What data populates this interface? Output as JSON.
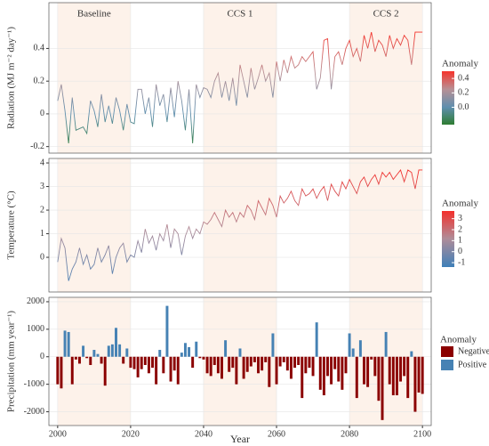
{
  "chart_data": [
    {
      "type": "line",
      "y_label": "Radiation (MJ m⁻² day⁻¹)",
      "periods": [
        {
          "label": "Baseline",
          "start": 2000,
          "end": 2020
        },
        {
          "label": "CCS 1",
          "start": 2040,
          "end": 2060
        },
        {
          "label": "CCS 2",
          "start": 2080,
          "end": 2100
        }
      ],
      "x": [
        2000,
        2001,
        2002,
        2003,
        2004,
        2005,
        2006,
        2007,
        2008,
        2009,
        2010,
        2011,
        2012,
        2013,
        2014,
        2015,
        2016,
        2017,
        2018,
        2019,
        2020,
        2021,
        2022,
        2023,
        2024,
        2025,
        2026,
        2027,
        2028,
        2029,
        2030,
        2031,
        2032,
        2033,
        2034,
        2035,
        2036,
        2037,
        2038,
        2039,
        2040,
        2041,
        2042,
        2043,
        2044,
        2045,
        2046,
        2047,
        2048,
        2049,
        2050,
        2051,
        2052,
        2053,
        2054,
        2055,
        2056,
        2057,
        2058,
        2059,
        2060,
        2061,
        2062,
        2063,
        2064,
        2065,
        2066,
        2067,
        2068,
        2069,
        2070,
        2071,
        2072,
        2073,
        2074,
        2075,
        2076,
        2077,
        2078,
        2079,
        2080,
        2081,
        2082,
        2083,
        2084,
        2085,
        2086,
        2087,
        2088,
        2089,
        2090,
        2091,
        2092,
        2093,
        2094,
        2095,
        2096,
        2097,
        2098,
        2099,
        2100
      ],
      "values": [
        0.08,
        0.18,
        0.02,
        -0.18,
        0.1,
        -0.1,
        -0.09,
        -0.08,
        -0.12,
        0.08,
        0.02,
        -0.08,
        0.12,
        -0.05,
        0.05,
        -0.06,
        0.1,
        0.02,
        -0.1,
        0.06,
        -0.05,
        -0.06,
        0.15,
        0.15,
        0.0,
        0.1,
        -0.08,
        0.18,
        0.05,
        0.12,
        -0.05,
        0.16,
        -0.02,
        0.2,
        0.08,
        -0.1,
        0.15,
        -0.18,
        0.18,
        0.1,
        0.16,
        0.15,
        0.1,
        0.2,
        0.25,
        0.1,
        0.2,
        0.08,
        0.22,
        0.05,
        0.3,
        0.2,
        0.1,
        0.28,
        0.15,
        0.22,
        0.3,
        0.2,
        0.25,
        0.1,
        0.32,
        0.2,
        0.33,
        0.25,
        0.35,
        0.28,
        0.3,
        0.35,
        0.32,
        0.35,
        0.38,
        0.15,
        0.22,
        0.45,
        0.46,
        0.15,
        0.35,
        0.38,
        0.3,
        0.4,
        0.45,
        0.35,
        0.4,
        0.32,
        0.48,
        0.4,
        0.5,
        0.38,
        0.45,
        0.42,
        0.35,
        0.48,
        0.4,
        0.46,
        0.42,
        0.48,
        0.45,
        0.3,
        0.5,
        0.5,
        0.5
      ],
      "xlim": [
        1997.6,
        2102.4
      ],
      "xticks": [
        2000,
        2020,
        2040,
        2060,
        2080,
        2100
      ],
      "ylim": [
        -0.24,
        0.68
      ],
      "yticks": [
        -0.2,
        0,
        0.2,
        0.4
      ],
      "legend_title": "Anomaly",
      "colorscale": [
        {
          "value": -0.24,
          "color": "#2e7d32"
        },
        {
          "value": 0,
          "color": "#5f8fae"
        },
        {
          "value": 0.25,
          "color": "#b89095"
        },
        {
          "value": 0.5,
          "color": "#f5332b"
        }
      ],
      "colorbar_ticks": [
        0.4,
        0.2,
        {
          "value": 0,
          "label": "0.0"
        }
      ]
    },
    {
      "type": "line",
      "y_label": "Temperature (°C)",
      "x": [
        2000,
        2001,
        2002,
        2003,
        2004,
        2005,
        2006,
        2007,
        2008,
        2009,
        2010,
        2011,
        2012,
        2013,
        2014,
        2015,
        2016,
        2017,
        2018,
        2019,
        2020,
        2021,
        2022,
        2023,
        2024,
        2025,
        2026,
        2027,
        2028,
        2029,
        2030,
        2031,
        2032,
        2033,
        2034,
        2035,
        2036,
        2037,
        2038,
        2039,
        2040,
        2041,
        2042,
        2043,
        2044,
        2045,
        2046,
        2047,
        2048,
        2049,
        2050,
        2051,
        2052,
        2053,
        2054,
        2055,
        2056,
        2057,
        2058,
        2059,
        2060,
        2061,
        2062,
        2063,
        2064,
        2065,
        2066,
        2067,
        2068,
        2069,
        2070,
        2071,
        2072,
        2073,
        2074,
        2075,
        2076,
        2077,
        2078,
        2079,
        2080,
        2081,
        2082,
        2083,
        2084,
        2085,
        2086,
        2087,
        2088,
        2089,
        2090,
        2091,
        2092,
        2093,
        2094,
        2095,
        2096,
        2097,
        2098,
        2099,
        2100
      ],
      "values": [
        -0.2,
        0.8,
        0.4,
        -1.0,
        -0.5,
        -0.2,
        0.4,
        -0.3,
        0.1,
        -0.5,
        -0.3,
        0.4,
        -0.2,
        0.1,
        0.5,
        -0.7,
        0.0,
        0.4,
        0.6,
        -0.2,
        0.1,
        0.0,
        0.7,
        0.2,
        1.2,
        0.6,
        0.9,
        0.3,
        1.0,
        0.7,
        1.4,
        0.4,
        1.2,
        1.0,
        0.1,
        0.9,
        1.3,
        0.8,
        1.2,
        1.0,
        1.5,
        1.4,
        1.6,
        1.9,
        1.6,
        1.3,
        2.0,
        1.7,
        1.9,
        1.5,
        1.9,
        1.7,
        2.2,
        2.0,
        1.6,
        2.4,
        2.1,
        1.8,
        2.5,
        2.2,
        1.7,
        2.6,
        2.3,
        2.5,
        2.8,
        2.4,
        2.2,
        2.9,
        2.6,
        2.7,
        2.9,
        2.5,
        2.8,
        3.0,
        2.4,
        3.1,
        2.8,
        2.6,
        3.2,
        2.9,
        3.3,
        3.0,
        2.7,
        3.2,
        3.4,
        3.0,
        3.3,
        3.5,
        3.1,
        3.6,
        3.4,
        3.6,
        3.3,
        3.5,
        3.7,
        3.2,
        3.7,
        3.6,
        2.9,
        3.7,
        3.7
      ],
      "xlim": [
        1997.6,
        2102.4
      ],
      "xticks": [
        2000,
        2020,
        2040,
        2060,
        2080,
        2100
      ],
      "ylim": [
        -1.47,
        4.19
      ],
      "yticks": [
        0,
        1,
        2,
        3,
        4
      ],
      "legend_title": "Anomaly",
      "colorscale": [
        {
          "value": -1.4,
          "color": "#3f80b8"
        },
        {
          "value": 1.2,
          "color": "#b08c98"
        },
        {
          "value": 3.7,
          "color": "#f3302c"
        }
      ],
      "colorbar_ticks": [
        3,
        2,
        1,
        0,
        -1
      ]
    },
    {
      "type": "bar",
      "y_label": "Precipitation (mm year⁻¹)",
      "x_label": "Year",
      "x": [
        2000,
        2001,
        2002,
        2003,
        2004,
        2005,
        2006,
        2007,
        2008,
        2009,
        2010,
        2011,
        2012,
        2013,
        2014,
        2015,
        2016,
        2017,
        2018,
        2019,
        2020,
        2021,
        2022,
        2023,
        2024,
        2025,
        2026,
        2027,
        2028,
        2029,
        2030,
        2031,
        2032,
        2033,
        2034,
        2035,
        2036,
        2037,
        2038,
        2039,
        2040,
        2041,
        2042,
        2043,
        2044,
        2045,
        2046,
        2047,
        2048,
        2049,
        2050,
        2051,
        2052,
        2053,
        2054,
        2055,
        2056,
        2057,
        2058,
        2059,
        2060,
        2061,
        2062,
        2063,
        2064,
        2065,
        2066,
        2067,
        2068,
        2069,
        2070,
        2071,
        2072,
        2073,
        2074,
        2075,
        2076,
        2077,
        2078,
        2079,
        2080,
        2081,
        2082,
        2083,
        2084,
        2085,
        2086,
        2087,
        2088,
        2089,
        2090,
        2091,
        2092,
        2093,
        2094,
        2095,
        2096,
        2097,
        2098,
        2099,
        2100
      ],
      "values": [
        -1000,
        -1150,
        950,
        900,
        -1000,
        -100,
        -250,
        400,
        -50,
        -300,
        250,
        100,
        -250,
        -1050,
        400,
        450,
        1050,
        450,
        -250,
        300,
        -400,
        -450,
        -750,
        -450,
        -300,
        -600,
        -400,
        -1000,
        250,
        -600,
        1850,
        -900,
        -500,
        -1000,
        150,
        500,
        350,
        -400,
        550,
        -50,
        -100,
        -600,
        -700,
        -300,
        -600,
        -800,
        600,
        -550,
        -400,
        -1000,
        300,
        -800,
        -550,
        -350,
        -200,
        -600,
        -500,
        -200,
        -1100,
        850,
        -1000,
        -350,
        -200,
        -500,
        -800,
        -400,
        -300,
        -1500,
        -600,
        -400,
        -700,
        1250,
        -1200,
        -1400,
        -700,
        -1000,
        -450,
        -900,
        -1200,
        -600,
        850,
        300,
        -1500,
        600,
        -1000,
        -1100,
        -100,
        -700,
        -1600,
        -2300,
        900,
        -1000,
        -1400,
        -1400,
        -900,
        -700,
        -1500,
        200,
        -2000,
        -1300,
        -1350
      ],
      "xlim": [
        1997.6,
        2102.4
      ],
      "xticks": [
        2000,
        2020,
        2040,
        2060,
        2080,
        2100
      ],
      "ylim": [
        -2500,
        2160
      ],
      "yticks": [
        -2000,
        -1000,
        0,
        1000,
        2000
      ],
      "legend_title": "Anomaly",
      "legend": [
        {
          "name": "Negative",
          "color": "#8b0000"
        },
        {
          "name": "Positive",
          "color": "#4682b4"
        }
      ]
    }
  ]
}
